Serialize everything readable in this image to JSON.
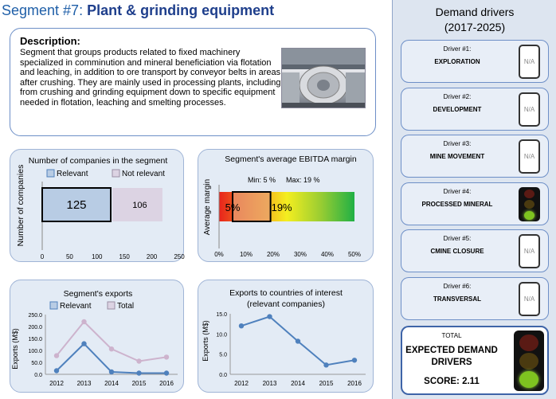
{
  "header": {
    "prefix": "Segment #7: ",
    "segment_name": "Plant & grinding equipment"
  },
  "description": {
    "heading": "Description:",
    "text": "Segment that groups products related to fixed machinery specialized in comminution and mineral beneficiation via flotation and leaching, in addition to ore transport by conveyor belts in areas after crushing. They are mainly used in processing plants, including from crushing and grinding equipment down to specific equipment needed in flotation, leaching and smelting processes."
  },
  "sidebar": {
    "title_line1": "Demand drivers",
    "title_line2": "(2017-2025)",
    "drivers": [
      {
        "num": "Driver #1:",
        "name": "EXPLORATION",
        "status": "N/A"
      },
      {
        "num": "Driver #2:",
        "name": "DEVELOPMENT",
        "status": "N/A"
      },
      {
        "num": "Driver #3:",
        "name": "MINE MOVEMENT",
        "status": "N/A"
      },
      {
        "num": "Driver #4:",
        "name": "PROCESSED MINERAL",
        "status": "green"
      },
      {
        "num": "Driver #5:",
        "name": "CMINE CLOSURE",
        "status": "N/A"
      },
      {
        "num": "Driver #6:",
        "name": "TRANSVERSAL",
        "status": "N/A"
      }
    ],
    "total": {
      "label": "TOTAL",
      "line1": "EXPECTED DEMAND",
      "line2": "DRIVERS",
      "score": "SCORE: 2.11",
      "status": "green"
    }
  },
  "chart_data": [
    {
      "type": "bar",
      "title": "Number of companies in the segment",
      "ylabel": "Number of companies",
      "orientation": "horizontal-stacked",
      "series": [
        {
          "name": "Relevant",
          "values": [
            125
          ]
        },
        {
          "name": "Not relevant",
          "values": [
            106
          ]
        }
      ],
      "value_labels": [
        "125",
        "106"
      ],
      "xlim": [
        0,
        250
      ],
      "xticks": [
        "0",
        "50",
        "100",
        "150",
        "200",
        "250"
      ],
      "colors": {
        "Relevant": "#b8cce4",
        "Not relevant": "#dcd3e3"
      }
    },
    {
      "type": "bar",
      "title": "Segment's average EBITDA margin",
      "ylabel": "Average margin",
      "min_label": "Min: 5 %",
      "max_label": "Max: 19 %",
      "min": 5,
      "max": 19,
      "min_text": "5%",
      "max_text": "19%",
      "xlim": [
        0,
        50
      ],
      "xticks": [
        "0%",
        "10%",
        "20%",
        "30%",
        "40%",
        "50%"
      ]
    },
    {
      "type": "line",
      "title": "Segment's exports",
      "ylabel": "Exports (M$)",
      "x": [
        "2012",
        "2013",
        "2014",
        "2015",
        "2016"
      ],
      "series": [
        {
          "name": "Relevant",
          "values": [
            15,
            128,
            10,
            5,
            5
          ],
          "color": "#4f81bd"
        },
        {
          "name": "Total",
          "values": [
            78,
            220,
            106,
            55,
            72
          ],
          "color": "#cdb3cd"
        }
      ],
      "ylim": [
        0,
        250
      ],
      "yticks": [
        "0.0",
        "50.0",
        "100.0",
        "150.0",
        "200.0",
        "250.0"
      ]
    },
    {
      "type": "line",
      "title": "Exports to countries of interest",
      "subtitle": "(relevant companies)",
      "ylabel": "Exports (M$)",
      "x": [
        "2012",
        "2013",
        "2014",
        "2015",
        "2016"
      ],
      "series": [
        {
          "values": [
            12.0,
            14.3,
            8.2,
            2.3,
            3.5
          ],
          "color": "#4f81bd"
        }
      ],
      "ylim": [
        0,
        15
      ],
      "yticks": [
        "0.0",
        "5.0",
        "10.0",
        "15.0"
      ]
    }
  ]
}
